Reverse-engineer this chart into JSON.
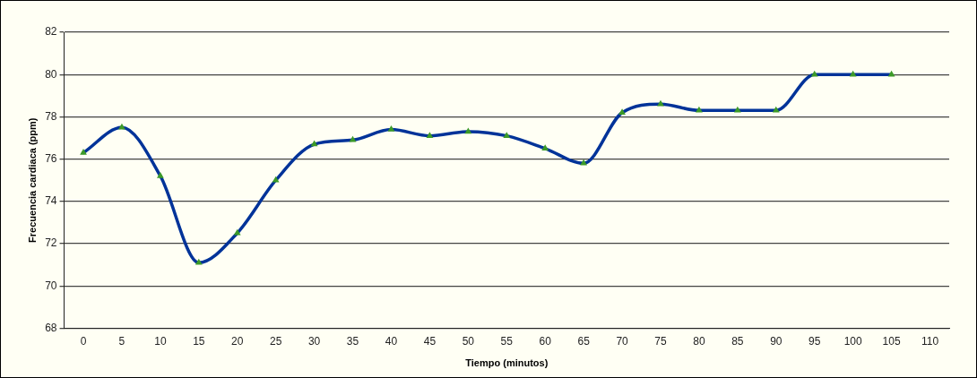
{
  "chart_data": {
    "type": "line",
    "xlabel": "Tiempo (minutos)",
    "ylabel": "Frecuencia cardiaca (ppm)",
    "categories": [
      "0",
      "5",
      "10",
      "15",
      "20",
      "25",
      "30",
      "35",
      "40",
      "45",
      "50",
      "55",
      "60",
      "65",
      "70",
      "75",
      "80",
      "85",
      "90",
      "95",
      "100",
      "105",
      "110"
    ],
    "series": [
      {
        "color": "#003399",
        "colors": [
          "#3c9a28",
          "#3c9a28",
          "#3c9a28",
          "#3c9a28",
          "#3c9a28",
          "#3c9a28",
          "#3c9a28",
          "#3c9a28",
          "#3c9a28",
          "#3c9a28",
          "#3c9a28",
          "#3c9a28",
          "#3c9a28",
          "#3c9a28",
          "#3c9a28",
          "#3c9a28",
          "#3c9a28",
          "#3c9a28",
          "#3c9a28",
          "#3c9a28",
          "#3c9a28",
          "#3c9a28",
          "#3c9a28"
        ],
        "values": [
          76.3,
          77.5,
          75.2,
          71.1,
          72.5,
          75.0,
          76.7,
          76.9,
          77.4,
          77.1,
          77.3,
          77.1,
          76.5,
          75.8,
          78.2,
          78.6,
          78.3,
          78.3,
          78.3,
          80.0,
          80.0,
          80.0,
          null
        ]
      }
    ],
    "ylim": [
      68,
      82
    ],
    "yticks": [
      68,
      70,
      72,
      74,
      76,
      78,
      80,
      82
    ],
    "grid": "y",
    "legend": false,
    "marker": "triangle",
    "line_style": "solid"
  }
}
